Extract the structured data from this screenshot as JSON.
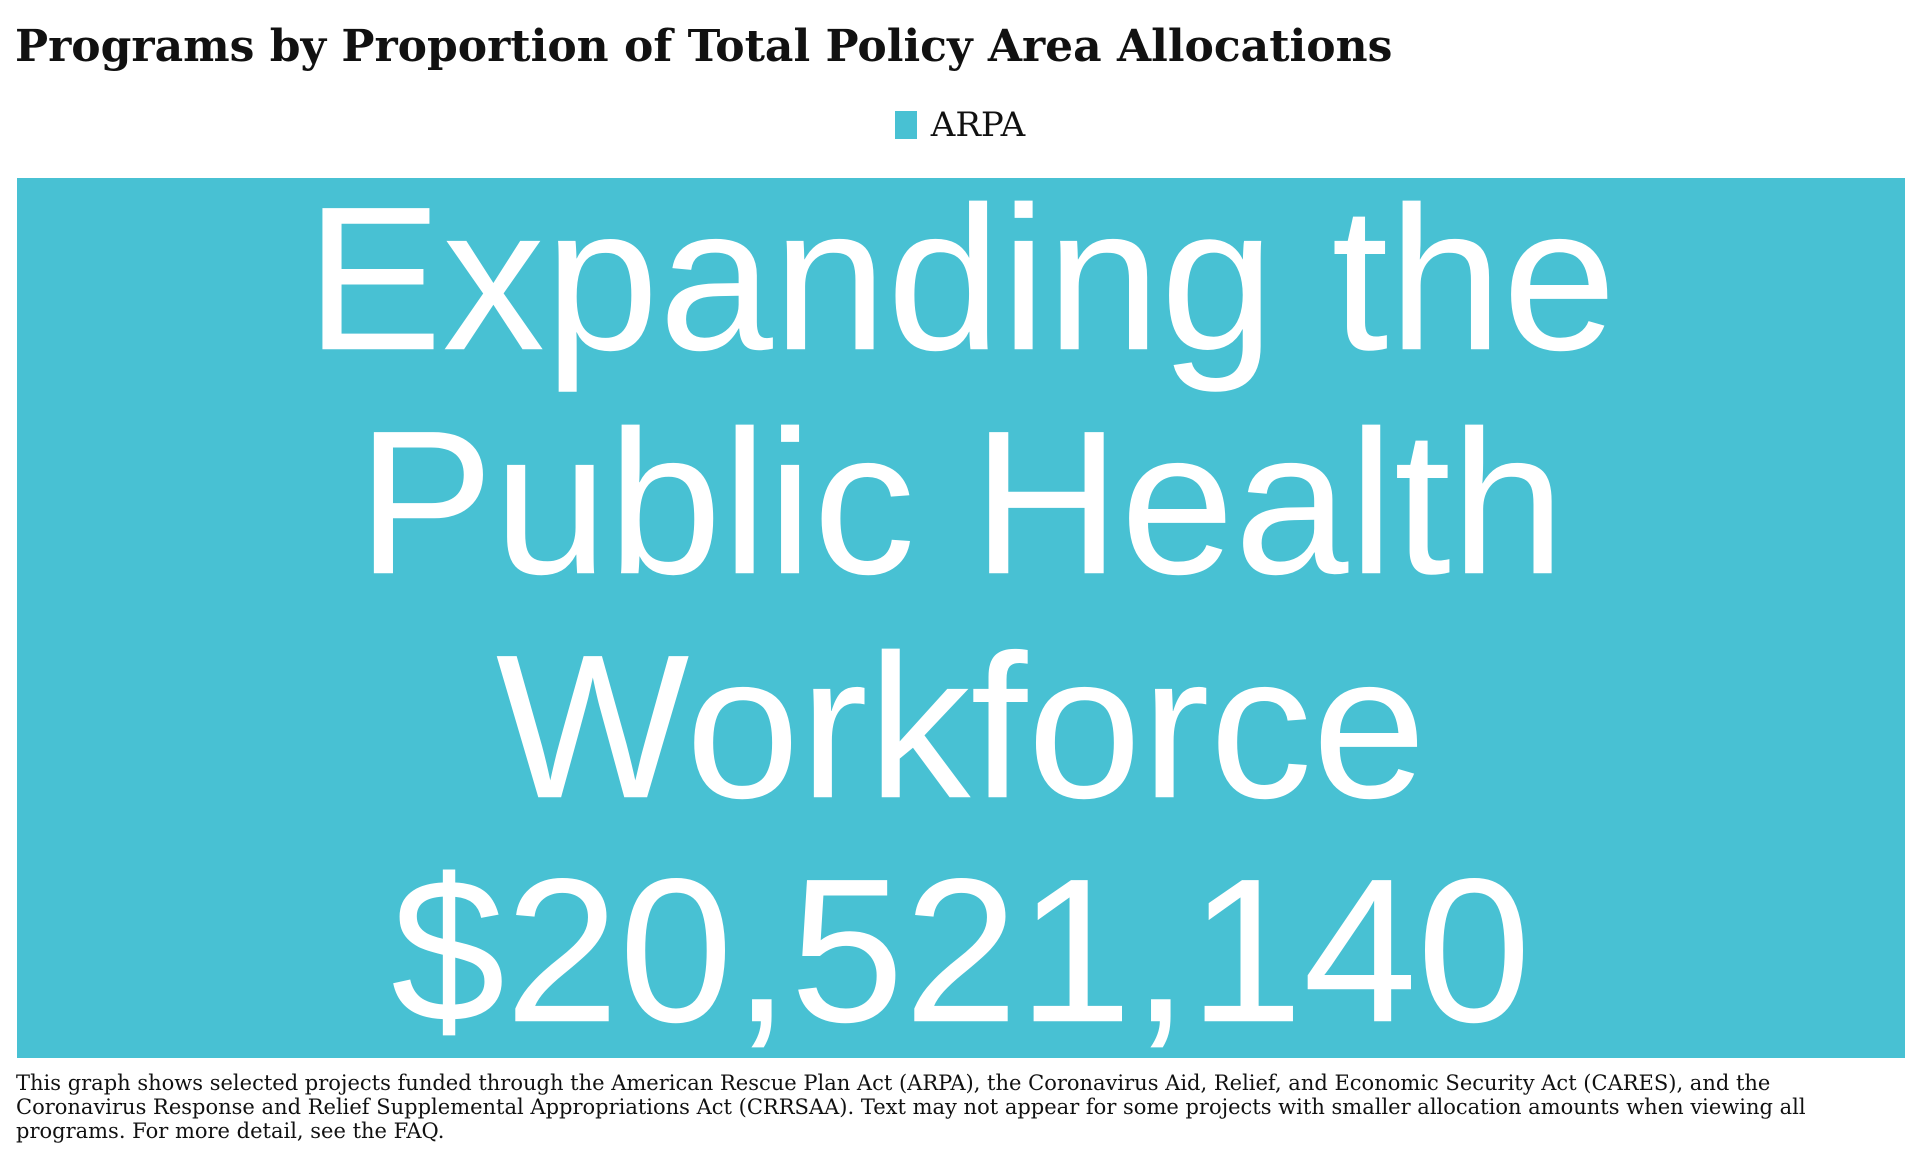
{
  "title": "Programs by Proportion of Total Policy Area Allocations",
  "legend": {
    "label": "ARPA",
    "color": "#48c1d3"
  },
  "footnote": "This graph shows selected projects funded through the American Rescue Plan Act (ARPA), the Coronavirus Aid, Relief, and Economic Security Act (CARES), and the Coronavirus Response and Relief Supplemental Appropriations Act (CRRSAA). Text may not appear for some projects with smaller allocation amounts when viewing all programs. For more detail, see the FAQ.",
  "chart_data": {
    "type": "treemap",
    "title": "Programs by Proportion of Total Policy Area Allocations",
    "legend": [
      "ARPA"
    ],
    "tiles": [
      {
        "label": "Expanding the Public Health Workforce",
        "value": 20521140,
        "value_label": "$20,521,140",
        "series": "ARPA",
        "color": "#48c1d3",
        "text_color": "#ffffff"
      }
    ]
  }
}
